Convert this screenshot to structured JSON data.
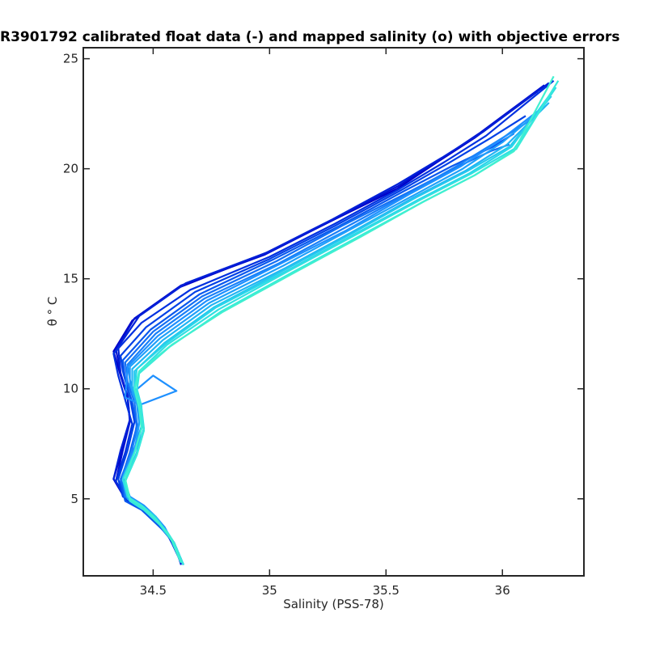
{
  "chart_data": {
    "type": "line",
    "title": "R3901792 calibrated float data (-) and mapped salinity (o) with objective errors",
    "xlabel": "Salinity (PSS-78)",
    "ylabel": "θ ° C",
    "xlim": [
      34.2,
      36.35
    ],
    "ylim": [
      1.5,
      25.5
    ],
    "xticks": [
      34.5,
      35,
      35.5,
      36
    ],
    "xtick_labels": [
      "34.5",
      "35",
      "35.5",
      "36"
    ],
    "yticks": [
      5,
      10,
      15,
      20,
      25
    ],
    "ytick_labels": [
      "5",
      "10",
      "15",
      "20",
      "25"
    ],
    "grid": false,
    "legend": "none",
    "color_gradient": [
      "#0000c8",
      "#0a48e6",
      "#1e90ff",
      "#22c8f0",
      "#40f0d0"
    ],
    "series": [
      {
        "color": "#0000c8",
        "x": [
          34.63,
          34.59,
          34.55,
          34.5,
          34.44,
          34.38,
          34.33,
          34.37,
          34.4,
          34.39,
          34.36,
          34.33,
          34.41,
          34.61,
          34.97,
          35.26,
          35.55,
          35.72,
          35.88,
          36.15
        ],
        "y": [
          2.0,
          3.0,
          3.6,
          4.1,
          4.6,
          5.0,
          5.9,
          7.3,
          8.6,
          9.6,
          10.6,
          11.7,
          13.1,
          14.6,
          16.1,
          17.6,
          19.1,
          20.3,
          21.4,
          23.5
        ]
      },
      {
        "color": "#0010d0",
        "x": [
          34.63,
          34.59,
          34.55,
          34.5,
          34.44,
          34.38,
          34.34,
          34.37,
          34.4,
          34.39,
          34.36,
          34.34,
          34.42,
          34.62,
          34.98,
          35.26,
          35.55,
          35.73,
          35.9,
          36.18
        ],
        "y": [
          2.0,
          3.0,
          3.6,
          4.1,
          4.6,
          5.0,
          5.8,
          7.2,
          8.5,
          9.6,
          10.7,
          11.8,
          13.2,
          14.7,
          16.1,
          17.6,
          19.2,
          20.4,
          21.6,
          23.8
        ]
      },
      {
        "color": "#0020d8",
        "x": [
          34.62,
          34.59,
          34.55,
          34.5,
          34.45,
          34.39,
          34.33,
          34.36,
          34.4,
          34.39,
          34.36,
          34.35,
          34.44,
          34.64,
          34.99,
          35.27,
          35.55,
          35.74,
          35.92,
          36.2
        ],
        "y": [
          2.0,
          3.0,
          3.6,
          4.2,
          4.7,
          5.1,
          5.9,
          7.2,
          8.6,
          9.7,
          10.7,
          11.9,
          13.3,
          14.8,
          16.2,
          17.7,
          19.3,
          20.5,
          21.7,
          23.9
        ]
      },
      {
        "color": "#0030e0",
        "x": [
          34.62,
          34.58,
          34.55,
          34.5,
          34.44,
          34.38,
          34.34,
          34.38,
          34.41,
          34.38,
          34.35,
          34.33,
          34.45,
          34.66,
          35.0,
          35.28,
          35.56,
          35.75,
          35.93,
          36.22
        ],
        "y": [
          2.1,
          3.0,
          3.6,
          4.1,
          4.6,
          5.0,
          5.8,
          7.1,
          8.4,
          9.5,
          10.6,
          11.6,
          13.0,
          14.5,
          16.0,
          17.5,
          19.1,
          20.3,
          21.5,
          24.0
        ]
      },
      {
        "color": "#0040e6",
        "x": [
          34.62,
          34.58,
          34.54,
          34.49,
          34.44,
          34.37,
          34.35,
          34.39,
          34.42,
          34.4,
          34.37,
          34.36,
          34.47,
          34.68,
          35.0,
          35.28,
          35.56,
          35.76,
          35.95,
          36.1
        ],
        "y": [
          2.1,
          3.1,
          3.6,
          4.2,
          4.7,
          5.1,
          5.9,
          7.2,
          8.5,
          9.6,
          10.8,
          11.5,
          12.8,
          14.4,
          15.9,
          17.4,
          19.0,
          20.2,
          21.4,
          22.4
        ]
      },
      {
        "color": "#0a58ee",
        "x": [
          34.63,
          34.59,
          34.55,
          34.5,
          34.45,
          34.38,
          34.36,
          34.4,
          34.43,
          34.41,
          34.38,
          34.37,
          34.49,
          34.7,
          35.02,
          35.3,
          35.58,
          35.78,
          35.96,
          36.05
        ],
        "y": [
          2.0,
          3.0,
          3.5,
          4.0,
          4.5,
          4.9,
          5.8,
          7.1,
          8.3,
          9.4,
          10.4,
          11.3,
          12.7,
          14.3,
          15.9,
          17.4,
          19.0,
          20.1,
          21.0,
          21.6
        ]
      },
      {
        "color": "#1470f4",
        "x": [
          34.63,
          34.59,
          34.55,
          34.51,
          34.45,
          34.39,
          34.36,
          34.41,
          34.43,
          34.42,
          34.39,
          34.38,
          34.5,
          34.71,
          35.03,
          35.31,
          35.59,
          35.79,
          35.95,
          36.03
        ],
        "y": [
          2.0,
          3.0,
          3.5,
          4.1,
          4.6,
          5.0,
          5.9,
          7.2,
          8.4,
          9.4,
          10.3,
          11.2,
          12.6,
          14.2,
          15.8,
          17.4,
          18.9,
          20.0,
          20.8,
          21.1
        ]
      },
      {
        "color": "#1a80f8",
        "x": [
          34.62,
          34.58,
          34.54,
          34.5,
          34.44,
          34.38,
          34.37,
          34.41,
          34.44,
          34.43,
          34.4,
          34.39,
          34.51,
          34.72,
          35.04,
          35.32,
          35.6,
          35.8,
          35.97,
          36.12
        ],
        "y": [
          2.1,
          3.1,
          3.7,
          4.2,
          4.7,
          5.1,
          6.0,
          7.3,
          8.5,
          9.5,
          10.4,
          11.1,
          12.5,
          14.1,
          15.7,
          17.3,
          18.9,
          20.1,
          21.2,
          22.2
        ]
      },
      {
        "color": "#1e90ff",
        "x": [
          34.62,
          34.58,
          34.55,
          34.51,
          34.46,
          34.4,
          34.37,
          34.42,
          34.45,
          34.44,
          34.41,
          34.5,
          34.6,
          34.45,
          34.38,
          34.39,
          34.52,
          34.73,
          35.05,
          35.33,
          35.61,
          35.82,
          35.99,
          36.15
        ],
        "y": [
          2.1,
          3.1,
          3.7,
          4.2,
          4.7,
          5.1,
          6.0,
          7.3,
          8.3,
          9.1,
          9.8,
          10.6,
          9.9,
          9.3,
          9.6,
          11.0,
          12.4,
          14.0,
          15.7,
          17.2,
          18.9,
          20.1,
          21.3,
          22.6
        ]
      },
      {
        "color": "#20a0fa",
        "x": [
          34.63,
          34.59,
          34.55,
          34.51,
          34.45,
          34.39,
          34.37,
          34.42,
          34.44,
          34.43,
          34.4,
          34.4,
          34.53,
          34.74,
          35.06,
          35.34,
          35.62,
          35.83,
          36.0,
          36.18
        ],
        "y": [
          2.0,
          3.0,
          3.6,
          4.1,
          4.6,
          5.0,
          5.9,
          7.2,
          8.4,
          9.3,
          10.2,
          11.0,
          12.3,
          13.9,
          15.6,
          17.2,
          18.8,
          20.0,
          21.2,
          22.8
        ]
      },
      {
        "color": "#22b4f4",
        "x": [
          34.63,
          34.59,
          34.56,
          34.52,
          34.46,
          34.4,
          34.38,
          34.43,
          34.45,
          34.44,
          34.41,
          34.41,
          34.54,
          34.75,
          35.07,
          35.35,
          35.62,
          35.84,
          36.02,
          36.2
        ],
        "y": [
          2.0,
          3.0,
          3.5,
          4.0,
          4.5,
          4.9,
          5.8,
          7.1,
          8.3,
          9.2,
          10.1,
          10.9,
          12.2,
          13.8,
          15.5,
          17.1,
          18.7,
          19.9,
          21.1,
          23.0
        ]
      },
      {
        "color": "#24c8ee",
        "x": [
          34.62,
          34.58,
          34.55,
          34.51,
          34.45,
          34.39,
          34.38,
          34.43,
          34.46,
          34.45,
          34.42,
          34.42,
          34.55,
          34.76,
          35.08,
          35.36,
          35.63,
          35.85,
          36.03,
          36.21
        ],
        "y": [
          2.1,
          3.1,
          3.6,
          4.2,
          4.7,
          5.1,
          5.9,
          7.1,
          8.2,
          9.1,
          10.0,
          10.8,
          12.1,
          13.7,
          15.5,
          17.1,
          18.7,
          19.9,
          21.0,
          23.3
        ]
      },
      {
        "color": "#2ad4ea",
        "x": [
          34.63,
          34.59,
          34.55,
          34.51,
          34.46,
          34.4,
          34.38,
          34.43,
          34.46,
          34.44,
          34.42,
          34.43,
          34.56,
          34.77,
          35.08,
          35.36,
          35.64,
          35.86,
          36.04,
          36.22
        ],
        "y": [
          2.0,
          3.0,
          3.5,
          4.1,
          4.6,
          5.0,
          5.8,
          7.0,
          8.1,
          9.1,
          10.1,
          10.9,
          12.1,
          13.7,
          15.4,
          17.0,
          18.6,
          19.8,
          21.0,
          23.6
        ]
      },
      {
        "color": "#30e0e2",
        "x": [
          34.62,
          34.58,
          34.54,
          34.5,
          34.45,
          34.39,
          34.37,
          34.42,
          34.45,
          34.45,
          34.43,
          34.44,
          34.56,
          34.78,
          35.09,
          35.37,
          35.65,
          35.87,
          36.05,
          36.23
        ],
        "y": [
          2.1,
          3.1,
          3.7,
          4.2,
          4.7,
          5.1,
          5.9,
          7.1,
          8.2,
          9.2,
          10.0,
          10.8,
          12.0,
          13.6,
          15.4,
          17.0,
          18.6,
          19.8,
          20.9,
          23.7
        ]
      },
      {
        "color": "#38eada",
        "x": [
          34.63,
          34.59,
          34.56,
          34.51,
          34.46,
          34.4,
          34.38,
          34.43,
          34.46,
          34.45,
          34.43,
          34.44,
          34.57,
          34.79,
          35.1,
          35.38,
          35.66,
          35.88,
          36.06,
          36.24
        ],
        "y": [
          2.0,
          3.0,
          3.5,
          4.0,
          4.5,
          4.9,
          5.8,
          7.0,
          8.1,
          9.0,
          9.9,
          10.7,
          11.9,
          13.5,
          15.3,
          16.9,
          18.5,
          19.7,
          20.9,
          24.0
        ]
      },
      {
        "color": "#40f0d0",
        "x": [
          34.62,
          34.58,
          34.55,
          34.51,
          34.46,
          34.4,
          34.38,
          34.42,
          34.45,
          34.44,
          34.42,
          34.44,
          34.58,
          34.8,
          35.11,
          35.39,
          35.66,
          35.88,
          36.05,
          36.22
        ],
        "y": [
          2.1,
          3.1,
          3.6,
          4.1,
          4.6,
          5.0,
          5.9,
          7.1,
          8.2,
          9.1,
          10.0,
          10.8,
          12.0,
          13.5,
          15.3,
          16.9,
          18.5,
          19.7,
          20.8,
          24.2
        ]
      }
    ]
  }
}
